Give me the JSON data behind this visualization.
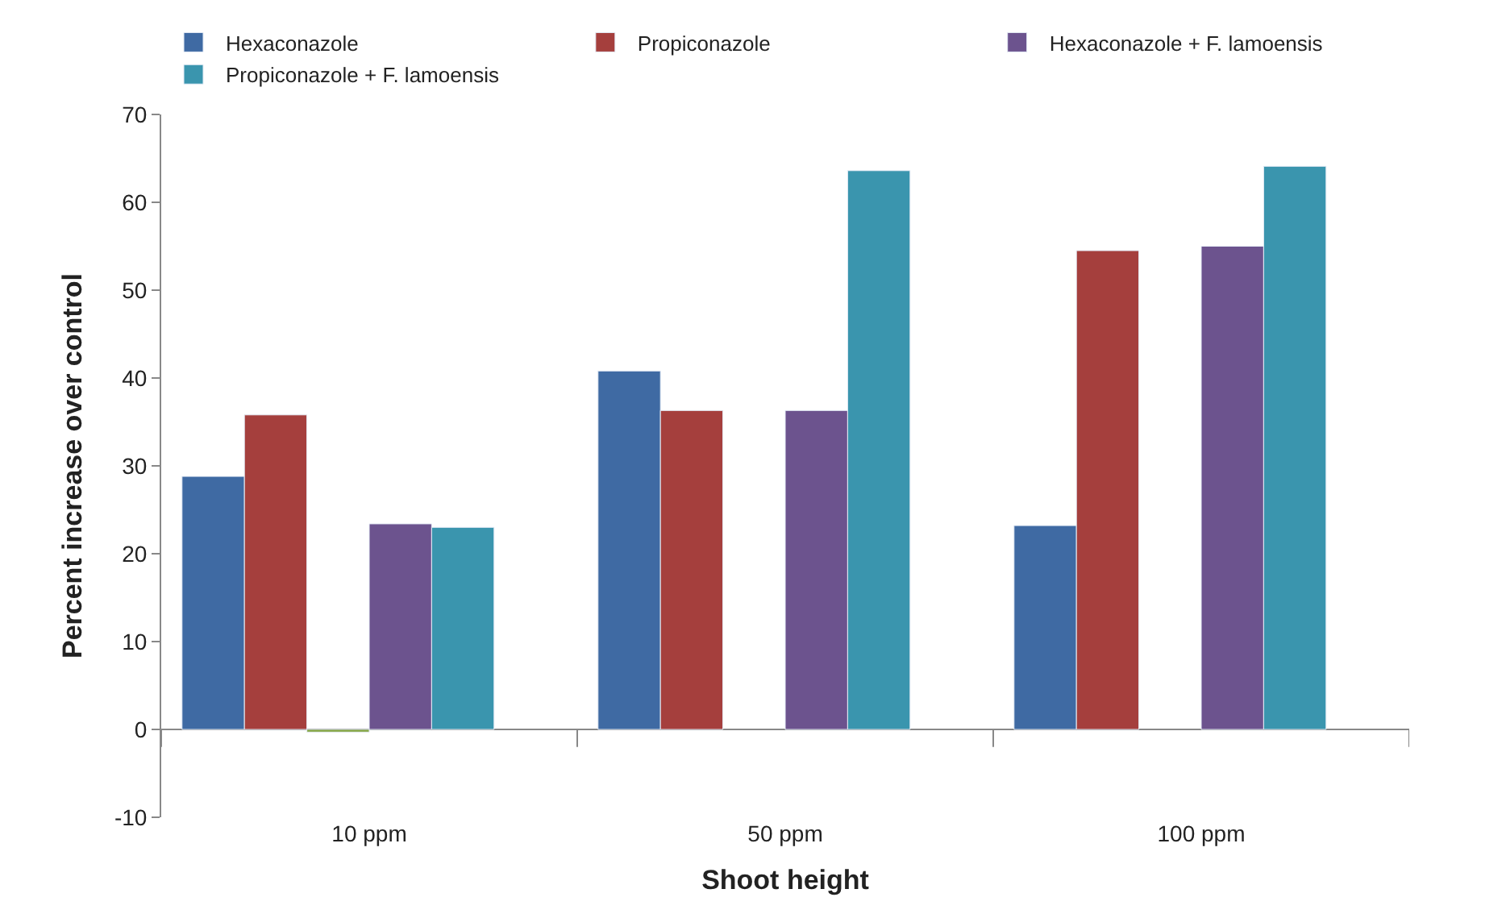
{
  "chart_data": {
    "type": "bar",
    "xlabel": "Shoot height",
    "ylabel": "Percent increase over control",
    "categories": [
      "10 ppm",
      "50 ppm",
      "100 ppm"
    ],
    "series": [
      {
        "name": "Hexaconazole",
        "color": "#3f6aa3",
        "values": [
          28.8,
          40.8,
          23.2
        ]
      },
      {
        "name": "Propiconazole",
        "color": "#a53f3d",
        "values": [
          35.8,
          36.3,
          54.5
        ]
      },
      {
        "color": "#7fa03a",
        "values": [
          -0.3,
          null,
          null
        ]
      },
      {
        "name": "Hexaconazole + F. lamoensis",
        "color": "#6c538e",
        "values": [
          23.4,
          36.3,
          55.0
        ]
      },
      {
        "name": "Propiconazole + F. lamoensis",
        "color": "#3a95ae",
        "values": [
          23.0,
          63.6,
          64.1
        ]
      },
      {
        "color": "#e0803a",
        "values": [
          null,
          null,
          null
        ]
      }
    ],
    "ylim": [
      -10,
      70
    ],
    "yticks": [
      -10,
      0,
      10,
      20,
      30,
      40,
      50,
      60,
      70
    ],
    "legend": "top"
  }
}
